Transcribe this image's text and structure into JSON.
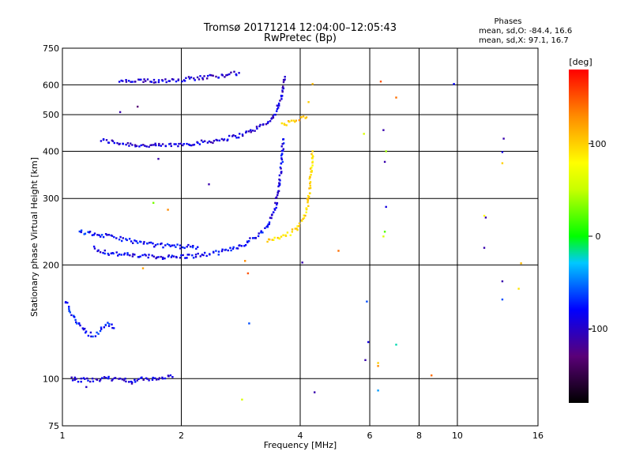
{
  "header": {
    "title_line1": "Tromsø 20171214 12:04:00–12:05:43",
    "title_line2": "RwPretec (Bp)"
  },
  "stats": {
    "heading": "Phases",
    "line_o": "mean, sd,O: -84.4, 16.6",
    "line_x": "mean, sd,X:  97.1, 16.7"
  },
  "colorbar": {
    "unit_label": "[deg]",
    "range": [
      -180,
      180
    ],
    "ticks": [
      {
        "label": "100",
        "value": 100
      },
      {
        "label": "0",
        "value": 0
      },
      {
        "label": "-100",
        "value": -100
      }
    ]
  },
  "chart_data": {
    "type": "scatter",
    "xlabel": "Frequency [MHz]",
    "ylabel": "Stationary phase Virtual Height [km]",
    "xscale": "log",
    "yscale": "log",
    "xlim": [
      1,
      16
    ],
    "ylim": [
      75,
      750
    ],
    "xticks": [
      {
        "label": "1",
        "value": 1
      },
      {
        "label": "2",
        "value": 2
      },
      {
        "label": "4",
        "value": 4
      },
      {
        "label": "6",
        "value": 6
      },
      {
        "label": "8",
        "value": 8
      },
      {
        "label": "10",
        "value": 10
      },
      {
        "label": "16",
        "value": 16
      }
    ],
    "yticks": [
      {
        "label": "75",
        "value": 75
      },
      {
        "label": "100",
        "value": 100
      },
      {
        "label": "200",
        "value": 200
      },
      {
        "label": "300",
        "value": 300
      },
      {
        "label": "400",
        "value": 400
      },
      {
        "label": "500",
        "value": 500
      },
      {
        "label": "600",
        "value": 600
      },
      {
        "label": "750",
        "value": 750
      }
    ],
    "grid": true,
    "color_by": "phase [deg]",
    "traces": [
      {
        "description": "O-mode F2 trace",
        "phase": -95,
        "points": [
          [
            1.25,
            428
          ],
          [
            1.4,
            420
          ],
          [
            1.6,
            414
          ],
          [
            1.8,
            414
          ],
          [
            2.0,
            417
          ],
          [
            2.3,
            423
          ],
          [
            2.6,
            432
          ],
          [
            2.9,
            445
          ],
          [
            3.1,
            460
          ],
          [
            3.3,
            475
          ],
          [
            3.45,
            500
          ],
          [
            3.55,
            540
          ],
          [
            3.62,
            580
          ],
          [
            3.66,
            630
          ]
        ]
      },
      {
        "description": "O-mode lower trace",
        "phase": -85,
        "points": [
          [
            1.2,
            222
          ],
          [
            1.3,
            215
          ],
          [
            1.5,
            212
          ],
          [
            1.7,
            210
          ],
          [
            1.9,
            210
          ],
          [
            2.1,
            211
          ],
          [
            2.3,
            213
          ],
          [
            2.5,
            216
          ],
          [
            2.7,
            221
          ],
          [
            2.9,
            228
          ],
          [
            3.1,
            238
          ],
          [
            3.3,
            252
          ],
          [
            3.45,
            280
          ],
          [
            3.55,
            330
          ],
          [
            3.6,
            380
          ],
          [
            3.62,
            430
          ]
        ]
      },
      {
        "description": "X-mode trace",
        "phase": 97,
        "points": [
          [
            3.3,
            232
          ],
          [
            3.5,
            235
          ],
          [
            3.7,
            240
          ],
          [
            3.9,
            248
          ],
          [
            4.05,
            262
          ],
          [
            4.15,
            280
          ],
          [
            4.22,
            310
          ],
          [
            4.26,
            350
          ],
          [
            4.3,
            400
          ]
        ]
      },
      {
        "description": "X-mode upper segment",
        "phase": 110,
        "points": [
          [
            3.6,
            470
          ],
          [
            3.8,
            478
          ],
          [
            4.0,
            488
          ],
          [
            4.15,
            492
          ]
        ]
      },
      {
        "description": "second hop trace",
        "phase": -95,
        "points": [
          [
            1.4,
            612
          ],
          [
            1.6,
            613
          ],
          [
            1.8,
            616
          ],
          [
            2.0,
            620
          ],
          [
            2.3,
            628
          ],
          [
            2.6,
            638
          ],
          [
            2.8,
            645
          ]
        ]
      },
      {
        "description": "lower F trace",
        "phase": -80,
        "points": [
          [
            1.1,
            245
          ],
          [
            1.25,
            240
          ],
          [
            1.4,
            235
          ],
          [
            1.6,
            228
          ],
          [
            1.8,
            225
          ],
          [
            2.0,
            224
          ],
          [
            2.2,
            223
          ]
        ]
      },
      {
        "description": "E-region echoes",
        "phase": -75,
        "points": [
          [
            1.02,
            160
          ],
          [
            1.05,
            150
          ],
          [
            1.1,
            140
          ],
          [
            1.15,
            132
          ],
          [
            1.2,
            130
          ],
          [
            1.25,
            135
          ],
          [
            1.3,
            140
          ],
          [
            1.35,
            136
          ]
        ]
      },
      {
        "description": "low echoes",
        "phase": -90,
        "points": [
          [
            1.05,
            100
          ],
          [
            1.1,
            99
          ],
          [
            1.3,
            100
          ],
          [
            1.5,
            99
          ],
          [
            1.7,
            100
          ],
          [
            1.9,
            101
          ]
        ]
      }
    ],
    "scattered_points": [
      {
        "x": 6.4,
        "y": 612,
        "phase": 150
      },
      {
        "x": 7.0,
        "y": 555,
        "phase": 140
      },
      {
        "x": 6.5,
        "y": 455,
        "phase": -110
      },
      {
        "x": 6.6,
        "y": 400,
        "phase": 40
      },
      {
        "x": 6.55,
        "y": 375,
        "phase": -110
      },
      {
        "x": 6.6,
        "y": 285,
        "phase": -90
      },
      {
        "x": 6.55,
        "y": 245,
        "phase": 20
      },
      {
        "x": 6.5,
        "y": 238,
        "phase": 60
      },
      {
        "x": 5.9,
        "y": 160,
        "phase": -60
      },
      {
        "x": 5.95,
        "y": 125,
        "phase": -90
      },
      {
        "x": 5.85,
        "y": 112,
        "phase": -110
      },
      {
        "x": 6.3,
        "y": 110,
        "phase": 100
      },
      {
        "x": 6.3,
        "y": 108,
        "phase": 130
      },
      {
        "x": 6.3,
        "y": 93,
        "phase": -40
      },
      {
        "x": 7.0,
        "y": 123,
        "phase": -20
      },
      {
        "x": 8.6,
        "y": 102,
        "phase": 140
      },
      {
        "x": 9.8,
        "y": 603,
        "phase": -80
      },
      {
        "x": 13.1,
        "y": 432,
        "phase": -110
      },
      {
        "x": 13.0,
        "y": 398,
        "phase": -90
      },
      {
        "x": 13.0,
        "y": 372,
        "phase": 100
      },
      {
        "x": 11.7,
        "y": 270,
        "phase": 80
      },
      {
        "x": 11.8,
        "y": 267,
        "phase": -110
      },
      {
        "x": 11.7,
        "y": 222,
        "phase": -110
      },
      {
        "x": 14.5,
        "y": 202,
        "phase": 110
      },
      {
        "x": 13.0,
        "y": 181,
        "phase": -110
      },
      {
        "x": 13.0,
        "y": 162,
        "phase": -60
      },
      {
        "x": 14.3,
        "y": 173,
        "phase": 90
      },
      {
        "x": 4.3,
        "y": 603,
        "phase": 110
      },
      {
        "x": 4.2,
        "y": 540,
        "phase": 100
      },
      {
        "x": 5.0,
        "y": 218,
        "phase": 140
      },
      {
        "x": 4.05,
        "y": 203,
        "phase": -110
      },
      {
        "x": 4.35,
        "y": 92,
        "phase": -110
      },
      {
        "x": 2.85,
        "y": 88,
        "phase": 60
      },
      {
        "x": 2.9,
        "y": 205,
        "phase": 130
      },
      {
        "x": 2.95,
        "y": 190,
        "phase": 150
      },
      {
        "x": 2.97,
        "y": 140,
        "phase": -60
      },
      {
        "x": 1.75,
        "y": 382,
        "phase": -110
      },
      {
        "x": 1.4,
        "y": 508,
        "phase": -110
      },
      {
        "x": 1.55,
        "y": 525,
        "phase": -130
      },
      {
        "x": 5.8,
        "y": 445,
        "phase": 60
      },
      {
        "x": 1.15,
        "y": 95,
        "phase": -100
      },
      {
        "x": 1.5,
        "y": 97,
        "phase": -110
      },
      {
        "x": 1.6,
        "y": 196,
        "phase": 120
      },
      {
        "x": 2.35,
        "y": 327,
        "phase": -110
      },
      {
        "x": 1.7,
        "y": 292,
        "phase": 30
      },
      {
        "x": 1.85,
        "y": 280,
        "phase": 130
      }
    ]
  }
}
